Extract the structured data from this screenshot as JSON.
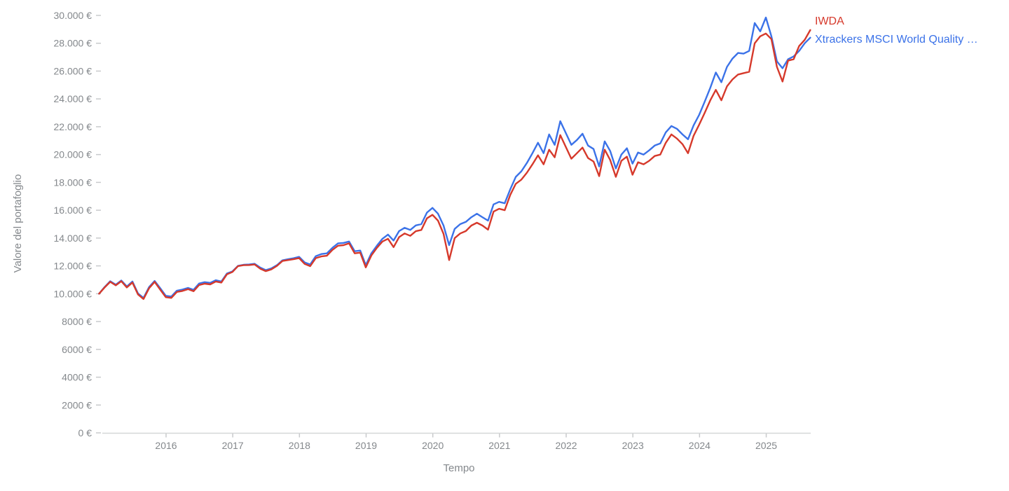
{
  "chart_data": {
    "type": "line",
    "title": "",
    "xlabel": "Tempo",
    "ylabel": "Valore del portafoglio",
    "legend_position": "top-right",
    "grid": false,
    "currency": "EUR",
    "ylim": [
      0,
      30000
    ],
    "y_ticks": [
      {
        "value": 0,
        "label": "0 €"
      },
      {
        "value": 2000,
        "label": "2000 €"
      },
      {
        "value": 4000,
        "label": "4000 €"
      },
      {
        "value": 6000,
        "label": "6000 €"
      },
      {
        "value": 8000,
        "label": "8000 €"
      },
      {
        "value": 10000,
        "label": "10.000 €"
      },
      {
        "value": 12000,
        "label": "12.000 €"
      },
      {
        "value": 14000,
        "label": "14.000 €"
      },
      {
        "value": 16000,
        "label": "16.000 €"
      },
      {
        "value": 18000,
        "label": "18.000 €"
      },
      {
        "value": 20000,
        "label": "20.000 €"
      },
      {
        "value": 22000,
        "label": "22.000 €"
      },
      {
        "value": 24000,
        "label": "24.000 €"
      },
      {
        "value": 26000,
        "label": "26.000 €"
      },
      {
        "value": 28000,
        "label": "28.000 €"
      },
      {
        "value": 30000,
        "label": "30.000 €"
      }
    ],
    "x_ticks": [
      "2016",
      "2017",
      "2018",
      "2019",
      "2020",
      "2021",
      "2022",
      "2023",
      "2024",
      "2025"
    ],
    "x_range": {
      "start": "2015-01",
      "end": "2025-09",
      "frequency": "monthly",
      "points": 129
    },
    "series": [
      {
        "name": "IWDA",
        "color": "#d6392b",
        "values": [
          10000,
          10450,
          10850,
          10600,
          10900,
          10450,
          10800,
          9950,
          9620,
          10400,
          10850,
          10300,
          9750,
          9700,
          10130,
          10200,
          10330,
          10180,
          10620,
          10720,
          10670,
          10880,
          10800,
          11390,
          11560,
          11980,
          12050,
          12060,
          12100,
          11800,
          11620,
          11750,
          12000,
          12350,
          12420,
          12480,
          12560,
          12140,
          11980,
          12560,
          12680,
          12730,
          13150,
          13450,
          13490,
          13620,
          12900,
          12950,
          11890,
          12750,
          13300,
          13750,
          13950,
          13350,
          14070,
          14330,
          14160,
          14490,
          14580,
          15420,
          15670,
          15250,
          14300,
          12420,
          14000,
          14330,
          14500,
          14900,
          15100,
          14900,
          14600,
          15900,
          16100,
          16000,
          17100,
          17900,
          18200,
          18700,
          19300,
          19950,
          19300,
          20350,
          19800,
          21400,
          20550,
          19700,
          20100,
          20500,
          19750,
          19500,
          18450,
          20350,
          19600,
          18400,
          19550,
          19850,
          18550,
          19450,
          19300,
          19550,
          19900,
          20000,
          20850,
          21450,
          21150,
          20750,
          20100,
          21350,
          22150,
          23000,
          23900,
          24650,
          23900,
          24900,
          25400,
          25750,
          25850,
          25950,
          28000,
          28500,
          28700,
          28300,
          26300,
          25250,
          26750,
          26850,
          27800,
          28250,
          28950
        ]
      },
      {
        "name": "Xtrackers MSCI World Quality …",
        "color": "#3b72e8",
        "values": [
          10000,
          10480,
          10900,
          10650,
          10950,
          10520,
          10880,
          10020,
          9700,
          10480,
          10920,
          10400,
          9850,
          9800,
          10220,
          10300,
          10420,
          10280,
          10730,
          10830,
          10780,
          10970,
          10880,
          11450,
          11600,
          12000,
          12080,
          12100,
          12150,
          11880,
          11700,
          11820,
          12050,
          12400,
          12480,
          12550,
          12650,
          12250,
          12100,
          12700,
          12850,
          12900,
          13300,
          13620,
          13650,
          13750,
          13050,
          13100,
          12050,
          12900,
          13450,
          13950,
          14250,
          13820,
          14500,
          14740,
          14580,
          14910,
          15000,
          15830,
          16170,
          15750,
          14900,
          13490,
          14660,
          15000,
          15160,
          15500,
          15750,
          15500,
          15250,
          16420,
          16600,
          16500,
          17500,
          18400,
          18800,
          19400,
          20100,
          20850,
          20100,
          21450,
          20700,
          22400,
          21550,
          20700,
          21050,
          21500,
          20650,
          20400,
          19150,
          20950,
          20250,
          19000,
          20000,
          20450,
          19350,
          20150,
          20000,
          20300,
          20650,
          20800,
          21600,
          22050,
          21850,
          21450,
          21100,
          22100,
          22850,
          23800,
          24800,
          25900,
          25200,
          26300,
          26900,
          27300,
          27250,
          27450,
          29450,
          28850,
          29850,
          28500,
          26700,
          26200,
          26850,
          27050,
          27450,
          28000,
          28400
        ]
      }
    ],
    "colors": {
      "axis_line": "#d5d7d8",
      "tick_dash": "#c8cacc",
      "tick_text": "#84888c",
      "axis_title_text": "#84888c",
      "background": "#ffffff"
    }
  },
  "legend": {
    "items": [
      {
        "label": "IWDA",
        "color": "#d6392b"
      },
      {
        "label": "Xtrackers MSCI World Quality …",
        "color": "#3b72e8"
      }
    ]
  }
}
